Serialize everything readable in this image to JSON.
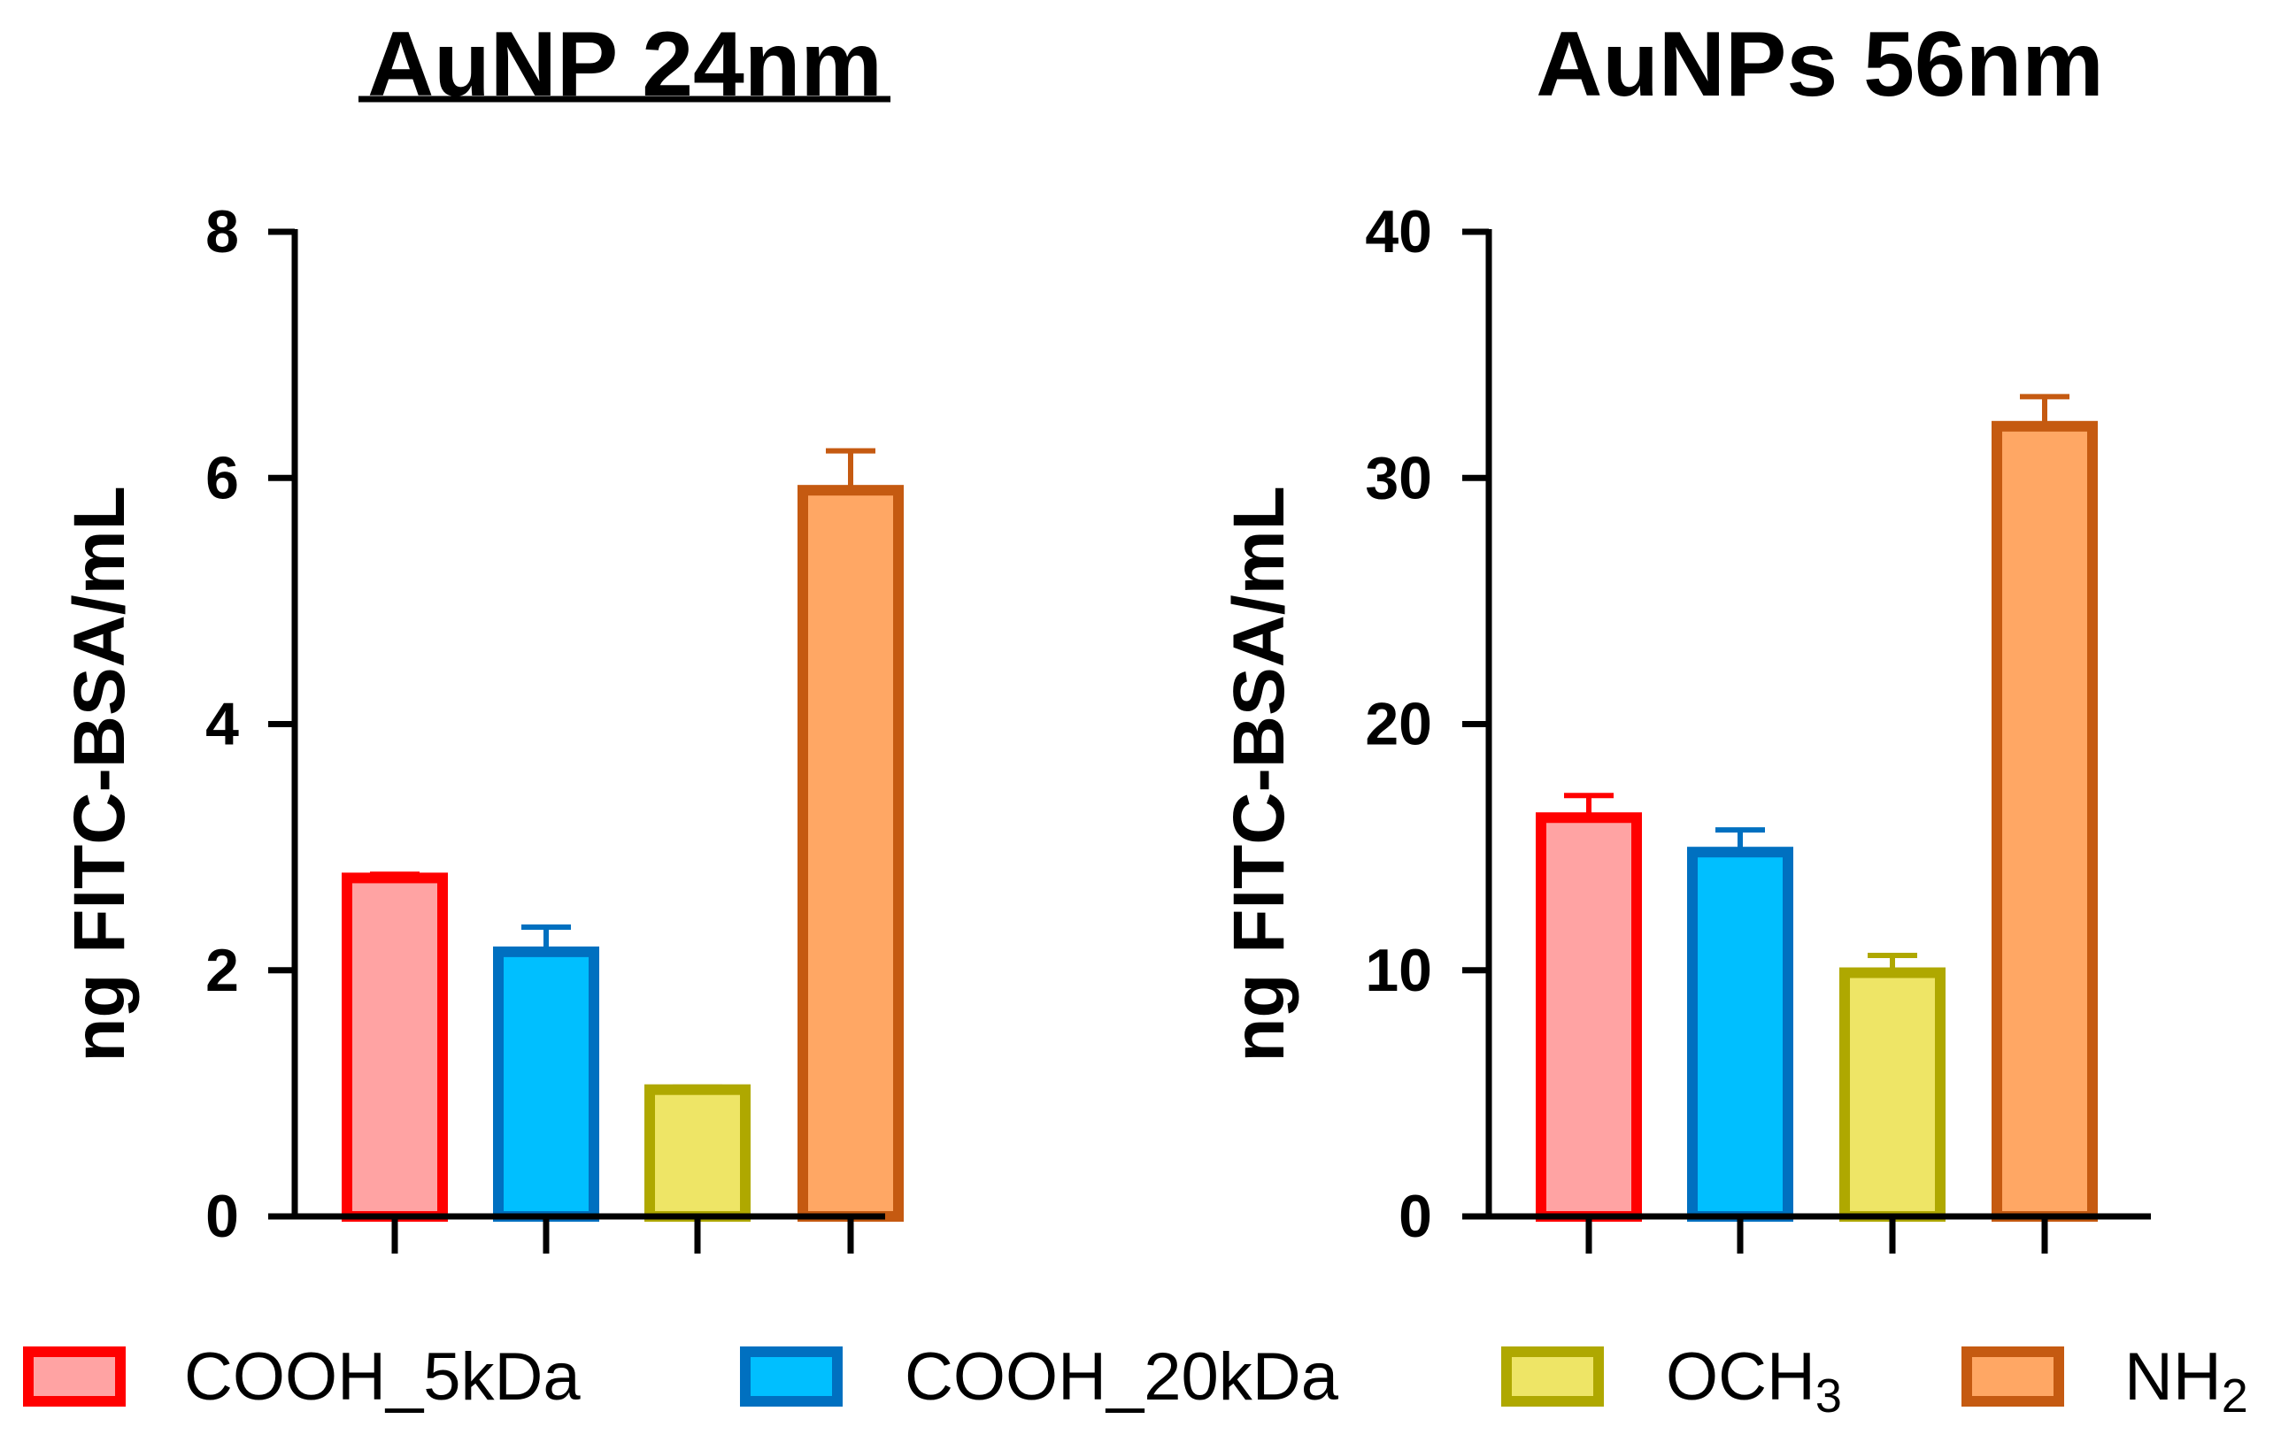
{
  "chart_data": [
    {
      "type": "bar",
      "title": "AuNP 24nm",
      "title_underlined": true,
      "xlabel": "",
      "ylabel": "ng FITC-BSA/mL",
      "ylim": [
        0,
        8
      ],
      "yticks": [
        "0",
        "2",
        "4",
        "6",
        "8"
      ],
      "categories": [
        "COOH_5kDa",
        "COOH_20kDa",
        "OCH3",
        "NH2"
      ],
      "values": [
        2.75,
        2.15,
        1.03,
        5.9
      ],
      "errors": [
        0.03,
        0.2,
        0.02,
        0.32
      ]
    },
    {
      "type": "bar",
      "title": "AuNPs 56nm",
      "title_underlined": false,
      "xlabel": "",
      "ylabel": "ng FITC-BSA/mL",
      "ylim": [
        0,
        40
      ],
      "yticks": [
        "0",
        "10",
        "20",
        "30",
        "40"
      ],
      "categories": [
        "COOH_5kDa",
        "COOH_20kDa",
        "OCH3",
        "NH2"
      ],
      "values": [
        16.2,
        14.8,
        9.9,
        32.1
      ],
      "errors": [
        0.9,
        0.9,
        0.7,
        1.2
      ]
    }
  ],
  "legend": {
    "placement": "bottom",
    "items": [
      {
        "label": "COOH_5kDa",
        "sub": ""
      },
      {
        "label": "COOH_20kDa",
        "sub": ""
      },
      {
        "label": "OCH",
        "sub": "3"
      },
      {
        "label": "NH",
        "sub": "2"
      }
    ]
  },
  "colors": {
    "COOH_5kDa": {
      "fill": "#FFA3A3",
      "stroke": "#FF0000"
    },
    "COOH_20kDa": {
      "fill": "#00BFFF",
      "stroke": "#0070C0"
    },
    "OCH3": {
      "fill": "#EEE566",
      "stroke": "#AFA800"
    },
    "NH2": {
      "fill": "#FFA764",
      "stroke": "#C55A11"
    },
    "axis": "#000000"
  }
}
